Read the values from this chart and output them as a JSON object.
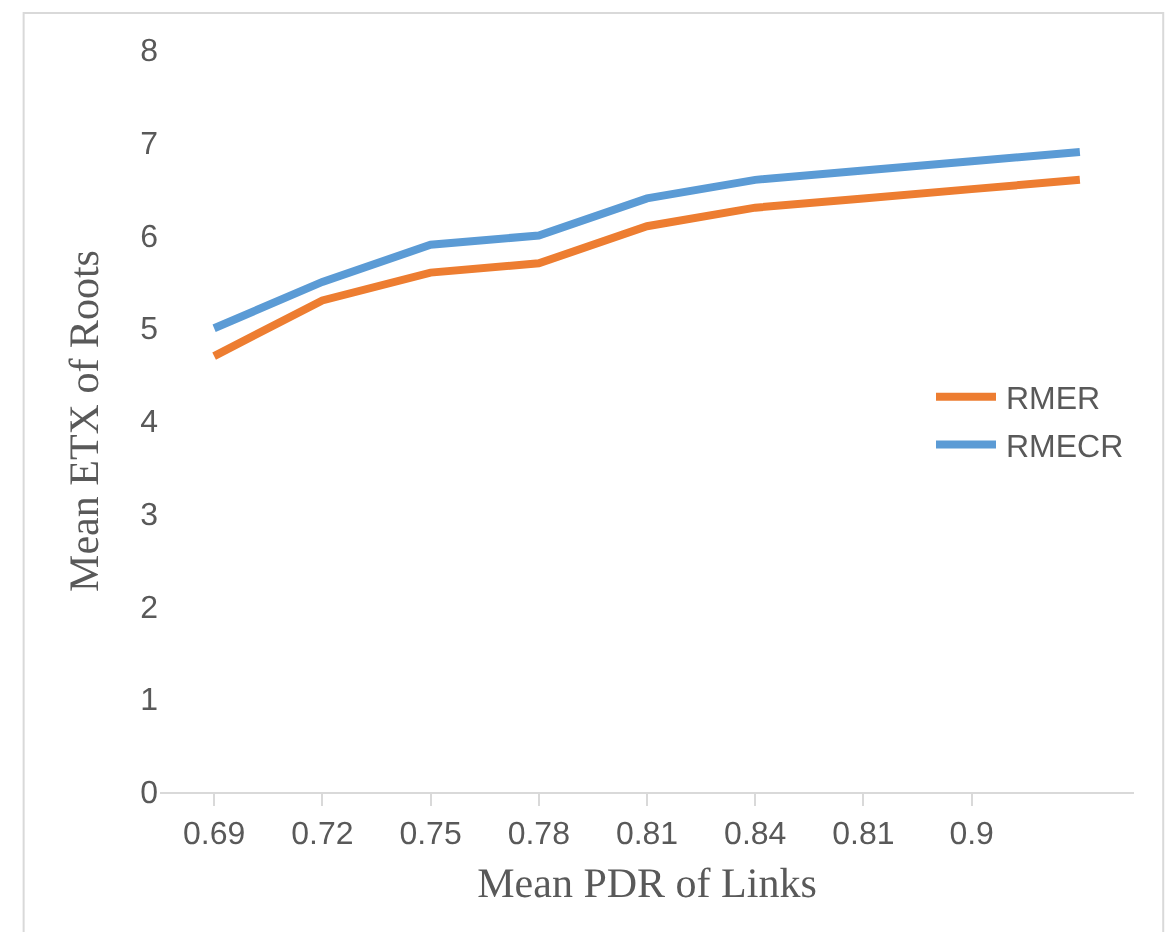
{
  "chart_data": {
    "type": "line",
    "xlabel": "Mean PDR of Links",
    "ylabel": "Mean ETX of Roots",
    "categories": [
      "0.69",
      "0.72",
      "0.75",
      "0.78",
      "0.81",
      "0.84",
      "0.81",
      "0.9",
      null
    ],
    "series": [
      {
        "name": "RMER",
        "color": "#ed7d31",
        "values": [
          4.7,
          5.3,
          5.6,
          5.7,
          6.1,
          6.3,
          6.4,
          6.5,
          6.6
        ]
      },
      {
        "name": "RMECR",
        "color": "#5b9bd5",
        "values": [
          5.0,
          5.5,
          5.9,
          6.0,
          6.4,
          6.6,
          6.7,
          6.8,
          6.9
        ]
      }
    ],
    "ylim": [
      0,
      8
    ],
    "yticks": [
      0,
      1,
      2,
      3,
      4,
      5,
      6,
      7,
      8
    ],
    "grid": false,
    "legend": "right",
    "marker": "none",
    "line_style": "solid"
  }
}
